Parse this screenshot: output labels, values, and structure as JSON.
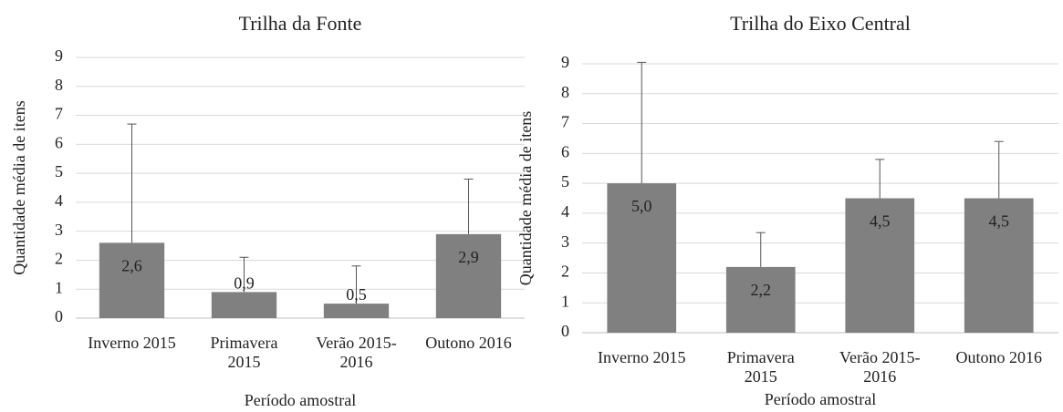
{
  "chart_data": [
    {
      "type": "bar",
      "title": "Trilha da Fonte",
      "y_label": "Quantidade média de itens",
      "x_label": "Período amostral",
      "categories": [
        "Inverno 2015",
        "Primavera 2015",
        "Verão 2015-2016",
        "Outono 2016"
      ],
      "values": [
        2.6,
        0.9,
        0.5,
        2.9
      ],
      "value_labels": [
        "2,6",
        "0,9",
        "0,5",
        "2,9"
      ],
      "errors": [
        4.1,
        1.2,
        1.3,
        1.9
      ],
      "color": "#808080",
      "ylim": [
        0,
        9
      ],
      "yticks": [
        0,
        1,
        2,
        3,
        4,
        5,
        6,
        7,
        8,
        9
      ],
      "grid": true
    },
    {
      "type": "bar",
      "title": "Trilha do Eixo Central",
      "y_label": "Quantidade média de itens",
      "x_label": "Período amostral",
      "categories": [
        "Inverno 2015",
        "Primavera 2015",
        "Verão 2015-2016",
        "Outono 2016"
      ],
      "values": [
        5.0,
        2.2,
        4.5,
        4.5
      ],
      "value_labels": [
        "5,0",
        "2,2",
        "4,5",
        "4,5"
      ],
      "errors": [
        4.05,
        1.15,
        1.3,
        1.9
      ],
      "color": "#808080",
      "ylim": [
        0,
        9
      ],
      "yticks": [
        0,
        1,
        2,
        3,
        4,
        5,
        6,
        7,
        8,
        9
      ],
      "grid": true
    }
  ]
}
